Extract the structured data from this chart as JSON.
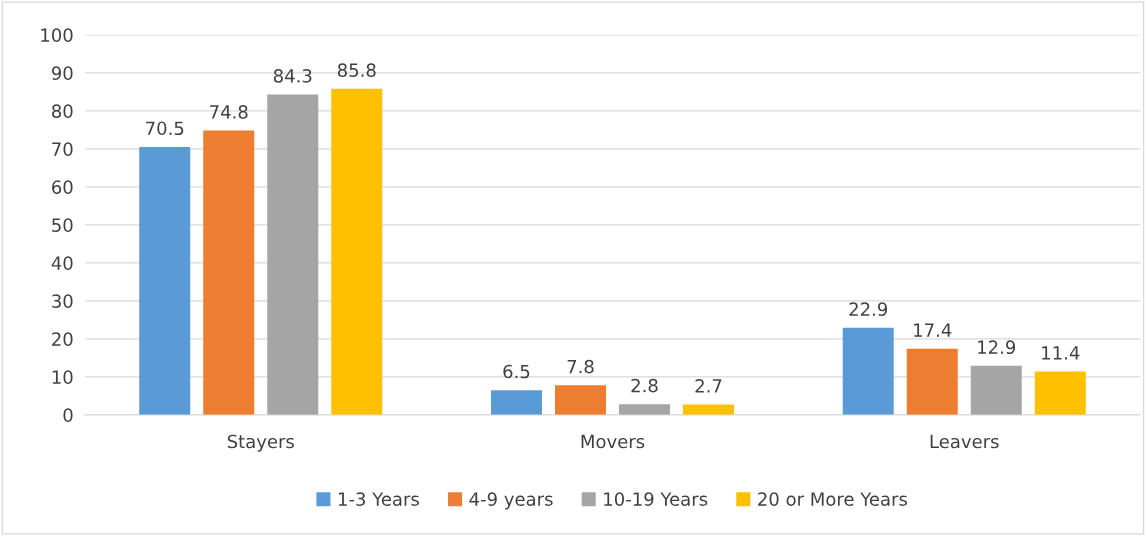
{
  "chart_data": {
    "type": "bar",
    "categories": [
      "Stayers",
      "Movers",
      "Leavers"
    ],
    "series": [
      {
        "name": "1-3 Years",
        "color": "#5b9bd5",
        "values": [
          70.5,
          6.5,
          22.9
        ]
      },
      {
        "name": "4-9 years",
        "color": "#ed7d31",
        "values": [
          74.8,
          7.8,
          17.4
        ]
      },
      {
        "name": "10-19 Years",
        "color": "#a5a5a5",
        "values": [
          84.3,
          2.8,
          12.9
        ]
      },
      {
        "name": "20 or More Years",
        "color": "#ffc000",
        "values": [
          85.8,
          2.7,
          11.4
        ]
      }
    ],
    "ylim": [
      0,
      100
    ],
    "yticks": [
      0,
      10,
      20,
      30,
      40,
      50,
      60,
      70,
      80,
      90,
      100
    ],
    "grid": "y",
    "legend": "bottom",
    "data_labels": true
  }
}
